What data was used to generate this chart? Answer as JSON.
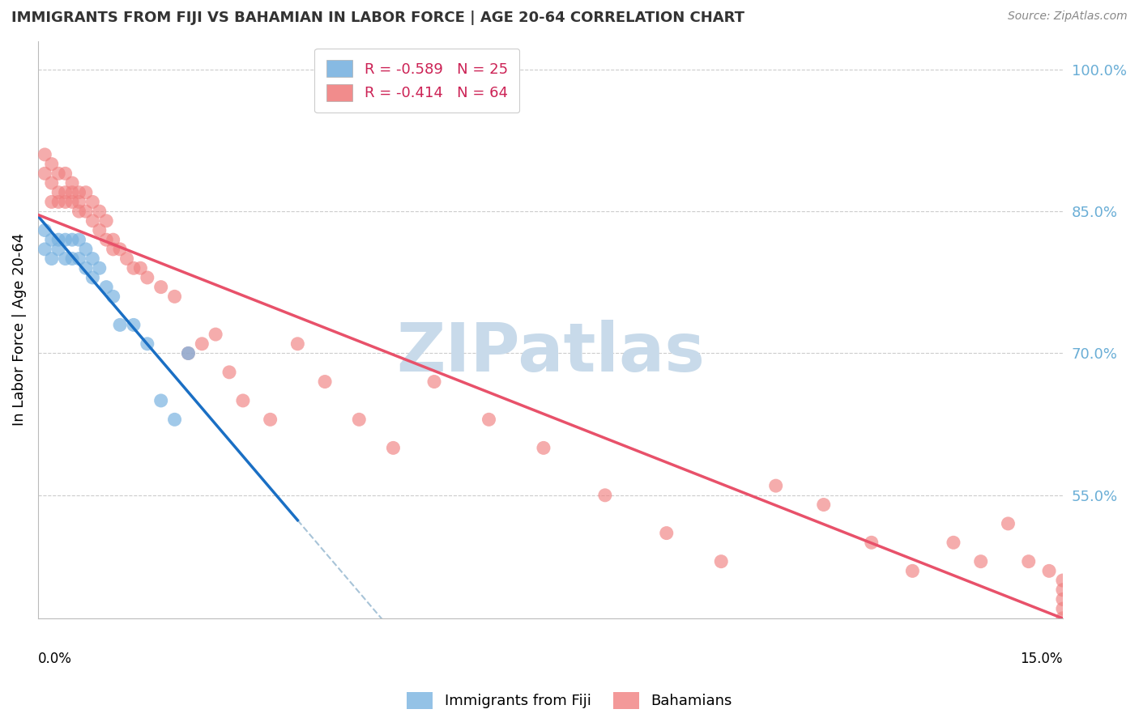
{
  "title": "IMMIGRANTS FROM FIJI VS BAHAMIAN IN LABOR FORCE | AGE 20-64 CORRELATION CHART",
  "source": "Source: ZipAtlas.com",
  "xlabel_bottom_left": "0.0%",
  "xlabel_bottom_right": "15.0%",
  "ylabel": "In Labor Force | Age 20-64",
  "y_ticks": [
    0.55,
    0.7,
    0.85,
    1.0
  ],
  "y_tick_labels": [
    "55.0%",
    "70.0%",
    "85.0%",
    "100.0%"
  ],
  "x_min": 0.0,
  "x_max": 0.15,
  "y_min": 0.42,
  "y_max": 1.03,
  "fiji_R": -0.589,
  "fiji_N": 25,
  "bahamian_R": -0.414,
  "bahamian_N": 64,
  "fiji_color": "#7ab3e0",
  "bahamian_color": "#f08080",
  "fiji_line_color": "#1a6fc4",
  "bahamian_line_color": "#e8516a",
  "dashed_line_color": "#a8c4d8",
  "watermark": "ZIPatlas",
  "watermark_color": "#c8daea",
  "fiji_x": [
    0.001,
    0.001,
    0.002,
    0.002,
    0.003,
    0.003,
    0.004,
    0.004,
    0.005,
    0.005,
    0.006,
    0.006,
    0.007,
    0.007,
    0.008,
    0.008,
    0.009,
    0.01,
    0.011,
    0.012,
    0.014,
    0.016,
    0.018,
    0.02,
    0.022
  ],
  "fiji_y": [
    0.83,
    0.81,
    0.82,
    0.8,
    0.82,
    0.81,
    0.82,
    0.8,
    0.82,
    0.8,
    0.82,
    0.8,
    0.81,
    0.79,
    0.8,
    0.78,
    0.79,
    0.77,
    0.76,
    0.73,
    0.73,
    0.71,
    0.65,
    0.63,
    0.7
  ],
  "bahamian_x": [
    0.001,
    0.001,
    0.002,
    0.002,
    0.002,
    0.003,
    0.003,
    0.003,
    0.004,
    0.004,
    0.004,
    0.005,
    0.005,
    0.005,
    0.006,
    0.006,
    0.006,
    0.007,
    0.007,
    0.008,
    0.008,
    0.009,
    0.009,
    0.01,
    0.01,
    0.011,
    0.011,
    0.012,
    0.013,
    0.014,
    0.015,
    0.016,
    0.018,
    0.02,
    0.022,
    0.024,
    0.026,
    0.028,
    0.03,
    0.034,
    0.038,
    0.042,
    0.047,
    0.052,
    0.058,
    0.066,
    0.074,
    0.083,
    0.092,
    0.1,
    0.108,
    0.115,
    0.122,
    0.128,
    0.134,
    0.138,
    0.142,
    0.145,
    0.148,
    0.15,
    0.15,
    0.15,
    0.15,
    0.15
  ],
  "bahamian_y": [
    0.91,
    0.89,
    0.9,
    0.88,
    0.86,
    0.89,
    0.87,
    0.86,
    0.89,
    0.87,
    0.86,
    0.88,
    0.87,
    0.86,
    0.87,
    0.86,
    0.85,
    0.87,
    0.85,
    0.86,
    0.84,
    0.85,
    0.83,
    0.84,
    0.82,
    0.82,
    0.81,
    0.81,
    0.8,
    0.79,
    0.79,
    0.78,
    0.77,
    0.76,
    0.7,
    0.71,
    0.72,
    0.68,
    0.65,
    0.63,
    0.71,
    0.67,
    0.63,
    0.6,
    0.67,
    0.63,
    0.6,
    0.55,
    0.51,
    0.48,
    0.56,
    0.54,
    0.5,
    0.47,
    0.5,
    0.48,
    0.52,
    0.48,
    0.47,
    0.46,
    0.45,
    0.44,
    0.43,
    0.42
  ],
  "title_color": "#333333",
  "right_axis_color": "#6aaed6",
  "grid_color": "#cccccc",
  "fiji_line_x_start": 0.0,
  "fiji_line_x_end": 0.038,
  "dashed_line_x_start": 0.038,
  "dashed_line_x_end": 0.15,
  "bahamian_line_x_start": 0.0,
  "bahamian_line_x_end": 0.15
}
